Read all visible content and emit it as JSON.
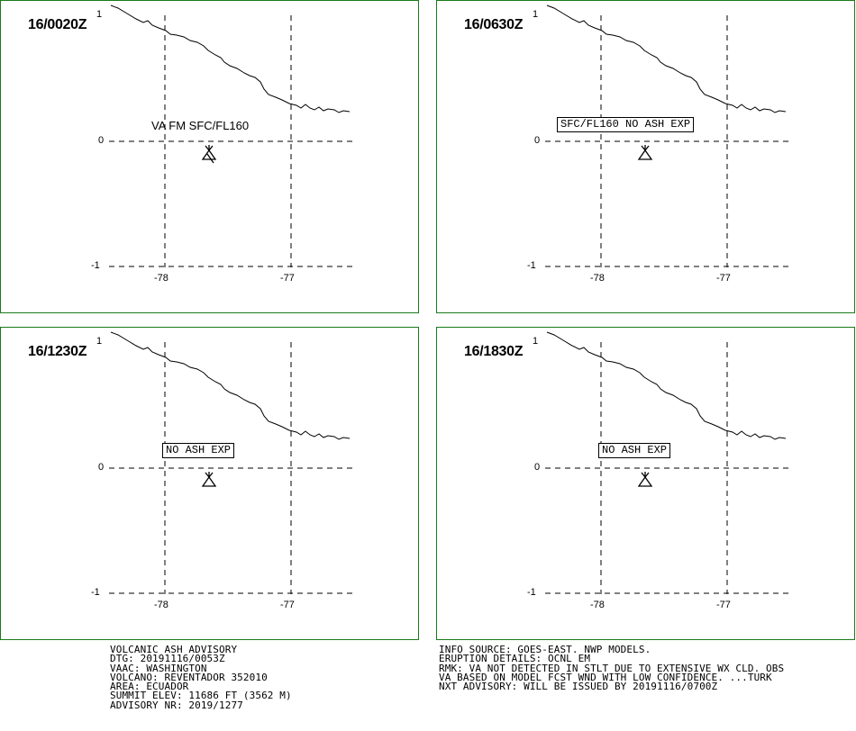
{
  "panels": [
    {
      "time": "16/0020Z",
      "label": "VA FM SFC/FL160",
      "label_style": "plain"
    },
    {
      "time": "16/0630Z",
      "label": "SFC/FL160 NO ASH EXP",
      "label_style": "boxed"
    },
    {
      "time": "16/1230Z",
      "label": "NO ASH EXP",
      "label_style": "boxed"
    },
    {
      "time": "16/1830Z",
      "label": "NO ASH EXP",
      "label_style": "boxed"
    }
  ],
  "axes": {
    "lat_ticks": [
      "1",
      "0",
      "-1"
    ],
    "lon_ticks": [
      "-78",
      "-77"
    ]
  },
  "advisory_left": [
    "VOLCANIC ASH ADVISORY",
    "DTG: 20191116/0053Z",
    "VAAC: WASHINGTON",
    "VOLCANO: REVENTADOR 352010",
    "AREA: ECUADOR",
    "SUMMIT ELEV: 11686 FT (3562 M)",
    "ADVISORY NR: 2019/1277"
  ],
  "advisory_right": [
    "INFO SOURCE: GOES-EAST. NWP MODELS.",
    "ERUPTION DETAILS: OCNL EM",
    "RMK: VA NOT DETECTED IN STLT DUE TO EXTENSIVE WX CLD. OBS",
    "VA BASED ON MODEL FCST WND WITH LOW CONFIDENCE. ...TURK",
    "NXT ADVISORY: WILL BE ISSUED BY 20191116/0700Z"
  ],
  "colors": {
    "panel_border": "#1a7a1a",
    "lines": "#000000"
  },
  "icons": {
    "volcano": "volcano-triangle-icon"
  }
}
